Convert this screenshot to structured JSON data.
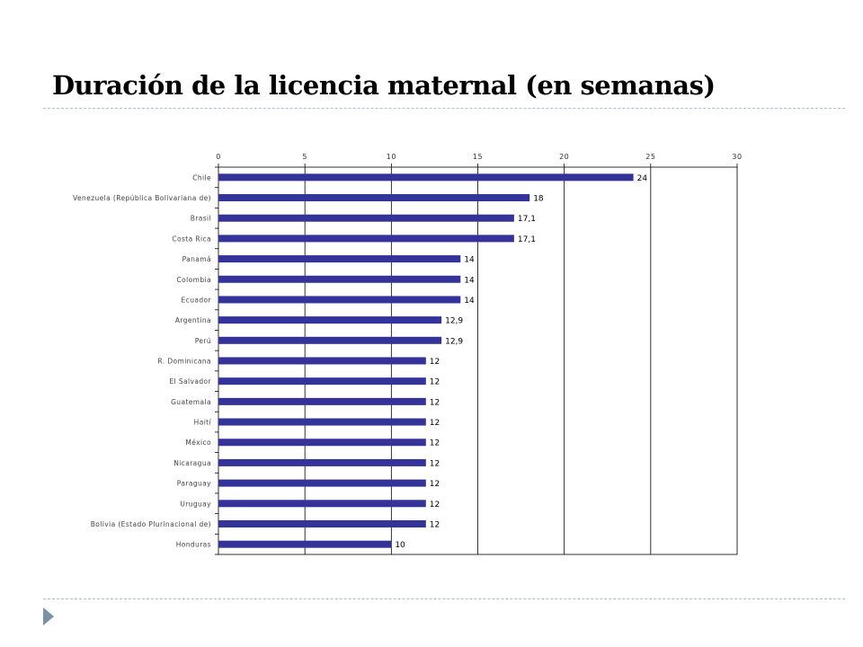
{
  "slide": {
    "title": "Duración de la licencia maternal (en semanas)",
    "accent_color": "#7b92a6",
    "rule_color": "#a8bfcf"
  },
  "chart_data": {
    "type": "bar",
    "orientation": "horizontal",
    "title": "",
    "xlabel": "",
    "ylabel": "",
    "xlim": [
      0,
      30
    ],
    "x_ticks": [
      0,
      5,
      10,
      15,
      20,
      25,
      30
    ],
    "x_axis_position": "top",
    "grid": true,
    "bar_color": "#333399",
    "categories": [
      "Chile",
      "Venezuela (República Bolivariana de)",
      "Brasil",
      "Costa Rica",
      "Panamá",
      "Colombia",
      "Ecuador",
      "Argentina",
      "Perú",
      "R. Dominicana",
      "El Salvador",
      "Guatemala",
      "Haití",
      "México",
      "Nicaragua",
      "Paraguay",
      "Uruguay",
      "Bolivia (Estado Plurinacional de)",
      "Honduras"
    ],
    "values": [
      24,
      18,
      17.1,
      17.1,
      14,
      14,
      14,
      12.9,
      12.9,
      12,
      12,
      12,
      12,
      12,
      12,
      12,
      12,
      12,
      10
    ],
    "value_labels": [
      "24",
      "18",
      "17,1",
      "17,1",
      "14",
      "14",
      "14",
      "12,9",
      "12,9",
      "12",
      "12",
      "12",
      "12",
      "12",
      "12",
      "12",
      "12",
      "12",
      "10"
    ]
  }
}
